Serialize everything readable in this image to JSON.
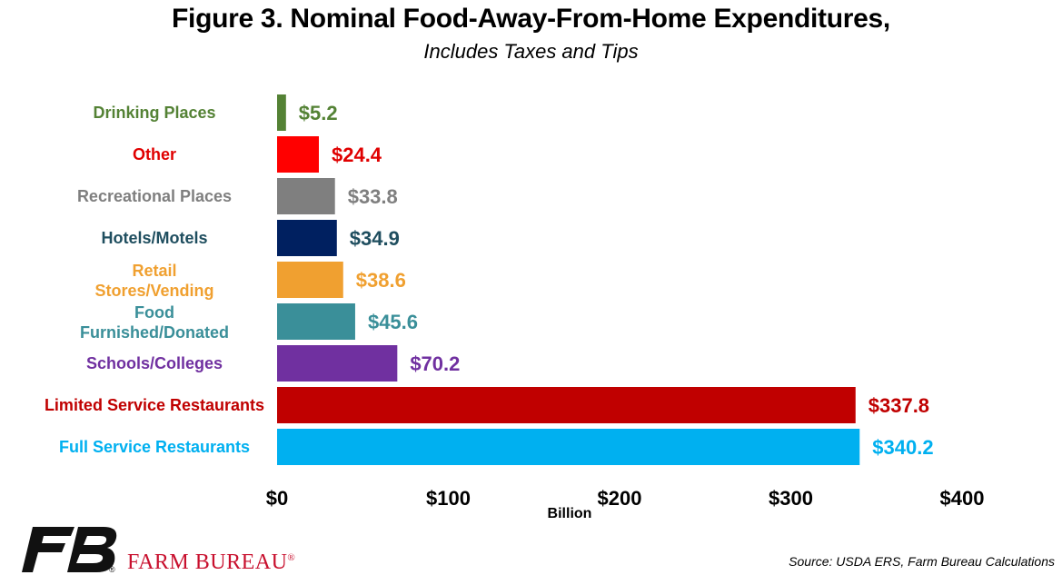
{
  "chart_data": {
    "type": "bar",
    "orientation": "horizontal",
    "title": "Figure 3. Nominal Food-Away-From-Home Expenditures,",
    "subtitle": "Includes Taxes and Tips",
    "xlabel": "Billion",
    "xlim": [
      0,
      400
    ],
    "x_ticks": [
      "$0",
      "$100",
      "$200",
      "$300",
      "$400"
    ],
    "x_tick_values": [
      0,
      100,
      200,
      300,
      400
    ],
    "grid": false,
    "categories": [
      "Drinking Places",
      "Other",
      "Recreational Places",
      "Hotels/Motels",
      "Retail Stores/Vending",
      "Food Furnished/Donated",
      "Schools/Colleges",
      "Limited Service Restaurants",
      "Full Service Restaurants"
    ],
    "values": [
      5.2,
      24.4,
      33.8,
      34.9,
      38.6,
      45.6,
      70.2,
      337.8,
      340.2
    ],
    "value_labels": [
      "$5.2",
      "$24.4",
      "$33.8",
      "$34.9",
      "$38.6",
      "$45.6",
      "$70.2",
      "$337.8",
      "$340.2"
    ],
    "colors": [
      "#548235",
      "#ff0000",
      "#7f7f7f",
      "#002060",
      "#f0a030",
      "#3a8f99",
      "#7030a0",
      "#c00000",
      "#00b0f0"
    ],
    "label_colors": [
      "#548235",
      "#e00000",
      "#7f7f7f",
      "#1f4e5f",
      "#f0a030",
      "#3a8f99",
      "#7030a0",
      "#c00000",
      "#00b0f0"
    ]
  },
  "footer": {
    "brand": "FARM BUREAU",
    "registered": "®",
    "source": "Source: USDA ERS, Farm Bureau Calculations"
  }
}
